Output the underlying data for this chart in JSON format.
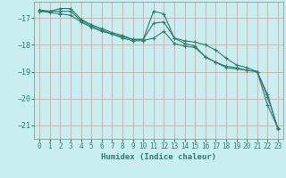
{
  "title": "",
  "xlabel": "Humidex (Indice chaleur)",
  "ylabel": "",
  "background_color": "#c8eef0",
  "grid_color": "#e8a0a0",
  "line_color": "#2e7d6e",
  "xlim": [
    -0.5,
    23.5
  ],
  "ylim": [
    -21.5,
    -16.4
  ],
  "yticks": [
    -17,
    -18,
    -19,
    -20,
    -21
  ],
  "xticks": [
    0,
    1,
    2,
    3,
    4,
    5,
    6,
    7,
    8,
    9,
    10,
    11,
    12,
    13,
    14,
    15,
    16,
    17,
    18,
    19,
    20,
    21,
    22,
    23
  ],
  "series": [
    [
      -16.7,
      -16.75,
      -16.65,
      -16.65,
      -17.05,
      -17.25,
      -17.4,
      -17.55,
      -17.65,
      -17.8,
      -17.8,
      -17.2,
      -17.15,
      -17.75,
      -17.85,
      -17.9,
      -18.0,
      -18.2,
      -18.5,
      -18.75,
      -18.85,
      -19.0,
      -20.25,
      -21.1
    ],
    [
      -16.75,
      -16.75,
      -16.75,
      -16.75,
      -17.1,
      -17.3,
      -17.45,
      -17.6,
      -17.75,
      -17.85,
      -17.85,
      -17.75,
      -17.5,
      -17.95,
      -18.05,
      -18.1,
      -18.45,
      -18.65,
      -18.8,
      -18.85,
      -18.95,
      -19.0,
      -19.85,
      -21.15
    ],
    [
      -16.75,
      -16.8,
      -16.85,
      -16.9,
      -17.15,
      -17.35,
      -17.5,
      -17.6,
      -17.7,
      -17.8,
      -17.8,
      -16.75,
      -16.85,
      -17.75,
      -17.95,
      -18.05,
      -18.45,
      -18.65,
      -18.85,
      -18.9,
      -18.95,
      -19.0,
      -19.95,
      -21.1
    ]
  ]
}
